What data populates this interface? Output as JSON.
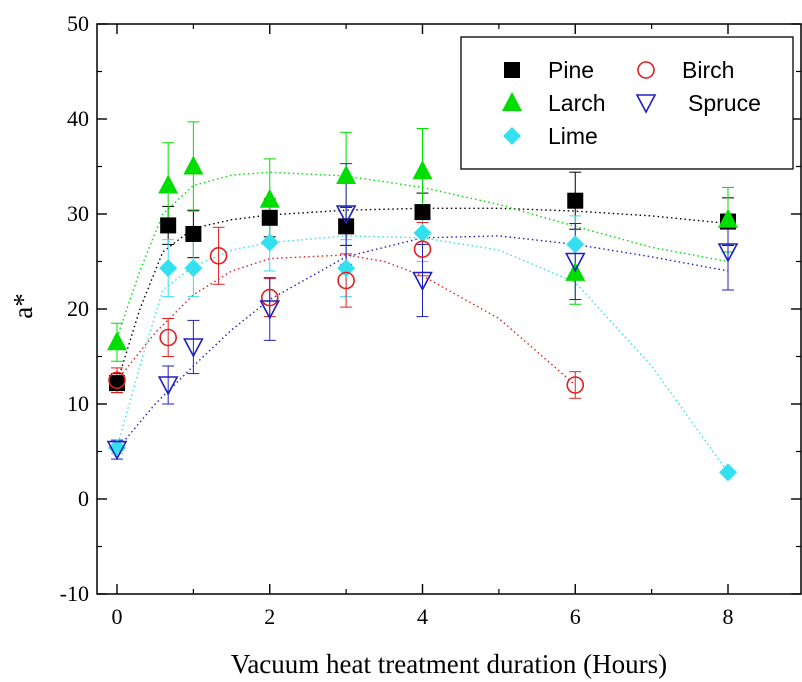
{
  "chart_data": {
    "type": "scatter",
    "title": "",
    "xlabel": "Vacuum heat treatment duration (Hours)",
    "ylabel": "a*",
    "xlim": [
      -0.2,
      9
    ],
    "ylim": [
      -10,
      50
    ],
    "x_ticks": [
      0,
      2,
      4,
      6,
      8
    ],
    "y_ticks": [
      -10,
      0,
      10,
      20,
      30,
      40,
      50
    ],
    "grid": false,
    "legend_position": "top-right",
    "series": [
      {
        "name": "Pine",
        "marker": "square",
        "color": "#000000",
        "points": [
          {
            "x": 0,
            "y": 12.2,
            "err": 1.0
          },
          {
            "x": 0.67,
            "y": 28.8,
            "err": 2.0
          },
          {
            "x": 1,
            "y": 27.9,
            "err": 2.5
          },
          {
            "x": 2,
            "y": 29.6,
            "err": 2.0
          },
          {
            "x": 3,
            "y": 28.7,
            "err": 2.0
          },
          {
            "x": 4,
            "y": 30.2,
            "err": 2.0
          },
          {
            "x": 6,
            "y": 31.4,
            "err": 3.0
          },
          {
            "x": 8,
            "y": 29.2,
            "err": 2.5
          }
        ]
      },
      {
        "name": "Larch",
        "marker": "triangle-up",
        "color": "#00dd00",
        "points": [
          {
            "x": 0,
            "y": 16.5,
            "err": 2.0
          },
          {
            "x": 0.67,
            "y": 33.0,
            "err": 4.5
          },
          {
            "x": 1,
            "y": 35.0,
            "err": 4.7
          },
          {
            "x": 2,
            "y": 31.5,
            "err": 4.3
          },
          {
            "x": 3,
            "y": 34.0,
            "err": 4.6
          },
          {
            "x": 4,
            "y": 34.5,
            "err": 4.5
          },
          {
            "x": 6,
            "y": 23.8,
            "err": 3.3
          },
          {
            "x": 8,
            "y": 29.4,
            "err": 3.4
          }
        ]
      },
      {
        "name": "Lime",
        "marker": "diamond",
        "color": "#33e0f0",
        "points": [
          {
            "x": 0,
            "y": 5.4,
            "err": 0.6
          },
          {
            "x": 0.67,
            "y": 24.3,
            "err": 3.0
          },
          {
            "x": 1,
            "y": 24.3,
            "err": 3.0
          },
          {
            "x": 2,
            "y": 27.0,
            "err": 3.0
          },
          {
            "x": 3,
            "y": 24.3,
            "err": 3.0
          },
          {
            "x": 4,
            "y": 28.0,
            "err": 3.0
          },
          {
            "x": 6,
            "y": 26.8,
            "err": 3.0
          },
          {
            "x": 8,
            "y": 2.8,
            "err": 0
          }
        ]
      },
      {
        "name": "Birch",
        "marker": "circle-open",
        "color": "#e02020",
        "points": [
          {
            "x": 0,
            "y": 12.5,
            "err": 1.3
          },
          {
            "x": 0.67,
            "y": 17.0,
            "err": 2.0
          },
          {
            "x": 1.33,
            "y": 25.6,
            "err": 3.0
          },
          {
            "x": 2,
            "y": 21.2,
            "err": 2.0
          },
          {
            "x": 3,
            "y": 23.0,
            "err": 2.8
          },
          {
            "x": 4,
            "y": 26.3,
            "err": 2.8
          },
          {
            "x": 6,
            "y": 12.0,
            "err": 1.4
          }
        ]
      },
      {
        "name": "Spruce",
        "marker": "triangle-down-open",
        "color": "#2020c0",
        "points": [
          {
            "x": 0,
            "y": 5.2,
            "err": 1.0
          },
          {
            "x": 0.67,
            "y": 12.0,
            "err": 2.0
          },
          {
            "x": 1,
            "y": 16.0,
            "err": 2.8
          },
          {
            "x": 2,
            "y": 20.0,
            "err": 3.3
          },
          {
            "x": 3,
            "y": 30.0,
            "err": 5.3
          },
          {
            "x": 4,
            "y": 23.0,
            "err": 3.8
          },
          {
            "x": 6,
            "y": 25.0,
            "err": 4.0
          },
          {
            "x": 8,
            "y": 26.0,
            "err": 4.0
          }
        ]
      }
    ],
    "trend_lines": [
      {
        "series": "Pine",
        "color": "#000000",
        "points": [
          [
            0,
            12.2
          ],
          [
            0.3,
            20
          ],
          [
            0.6,
            26
          ],
          [
            1,
            28.5
          ],
          [
            1.5,
            29.4
          ],
          [
            2,
            29.9
          ],
          [
            3,
            30.4
          ],
          [
            4,
            30.6
          ],
          [
            5,
            30.6
          ],
          [
            6,
            30.3
          ],
          [
            7,
            29.8
          ],
          [
            8,
            29.0
          ]
        ]
      },
      {
        "series": "Larch",
        "color": "#00dd00",
        "points": [
          [
            0,
            17
          ],
          [
            0.3,
            24
          ],
          [
            0.6,
            30
          ],
          [
            1,
            33
          ],
          [
            1.5,
            34.1
          ],
          [
            2,
            34.4
          ],
          [
            3,
            34
          ],
          [
            4,
            32.8
          ],
          [
            5,
            31
          ],
          [
            6,
            28.7
          ],
          [
            7,
            26.5
          ],
          [
            8,
            25.0
          ]
        ]
      },
      {
        "series": "Lime",
        "color": "#33e0f0",
        "points": [
          [
            0,
            5.4
          ],
          [
            0.3,
            14
          ],
          [
            0.6,
            22
          ],
          [
            1,
            24.5
          ],
          [
            1.5,
            26.2
          ],
          [
            2,
            27
          ],
          [
            3,
            27.7
          ],
          [
            4,
            27.5
          ],
          [
            5,
            26.2
          ],
          [
            6,
            22.8
          ],
          [
            7,
            14
          ],
          [
            8,
            2.8
          ]
        ]
      },
      {
        "series": "Birch",
        "color": "#e02020",
        "points": [
          [
            0,
            12.5
          ],
          [
            0.5,
            17.5
          ],
          [
            1,
            21.5
          ],
          [
            1.5,
            24
          ],
          [
            2,
            25.3
          ],
          [
            3,
            25.7
          ],
          [
            3.5,
            25
          ],
          [
            4,
            23.5
          ],
          [
            5,
            19
          ],
          [
            6,
            12.0
          ]
        ]
      },
      {
        "series": "Spruce",
        "color": "#2020c0",
        "points": [
          [
            0,
            5.2
          ],
          [
            0.5,
            10
          ],
          [
            1,
            14
          ],
          [
            1.5,
            17.8
          ],
          [
            2,
            21
          ],
          [
            3,
            25.5
          ],
          [
            4,
            27.5
          ],
          [
            5,
            27.7
          ],
          [
            6,
            26.8
          ],
          [
            7,
            25.5
          ],
          [
            8,
            24.0
          ]
        ]
      }
    ],
    "legend_order": [
      "Pine",
      "Birch",
      "Larch",
      "Spruce",
      "Lime"
    ]
  }
}
